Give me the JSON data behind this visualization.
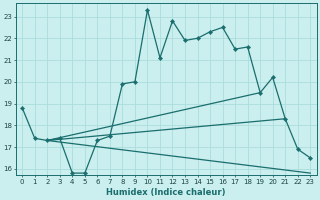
{
  "xlabel": "Humidex (Indice chaleur)",
  "xlim": [
    -0.5,
    23.5
  ],
  "ylim": [
    15.7,
    23.6
  ],
  "yticks": [
    16,
    17,
    18,
    19,
    20,
    21,
    22,
    23
  ],
  "xticks": [
    0,
    1,
    2,
    3,
    4,
    5,
    6,
    7,
    8,
    9,
    10,
    11,
    12,
    13,
    14,
    15,
    16,
    17,
    18,
    19,
    20,
    21,
    22,
    23
  ],
  "bg_color": "#cbeeee",
  "grid_color": "#aadddd",
  "line_color": "#1a6e6e",
  "main_line": {
    "x": [
      0,
      1,
      2,
      3,
      4,
      5,
      6,
      7,
      8,
      9,
      10,
      11,
      12,
      13,
      14,
      15,
      16,
      17,
      18,
      19,
      20,
      21,
      22,
      23
    ],
    "y": [
      18.8,
      17.4,
      17.3,
      17.4,
      15.8,
      15.8,
      17.3,
      17.5,
      19.9,
      20.0,
      23.3,
      21.1,
      22.8,
      21.9,
      22.0,
      22.3,
      22.5,
      21.5,
      21.6,
      19.5,
      20.2,
      18.3,
      16.9,
      16.5
    ]
  },
  "trend_lines": [
    {
      "x": [
        2,
        19
      ],
      "y": [
        17.3,
        19.5
      ]
    },
    {
      "x": [
        2,
        21
      ],
      "y": [
        17.3,
        18.3
      ]
    },
    {
      "x": [
        2,
        23
      ],
      "y": [
        17.3,
        15.8
      ]
    }
  ]
}
